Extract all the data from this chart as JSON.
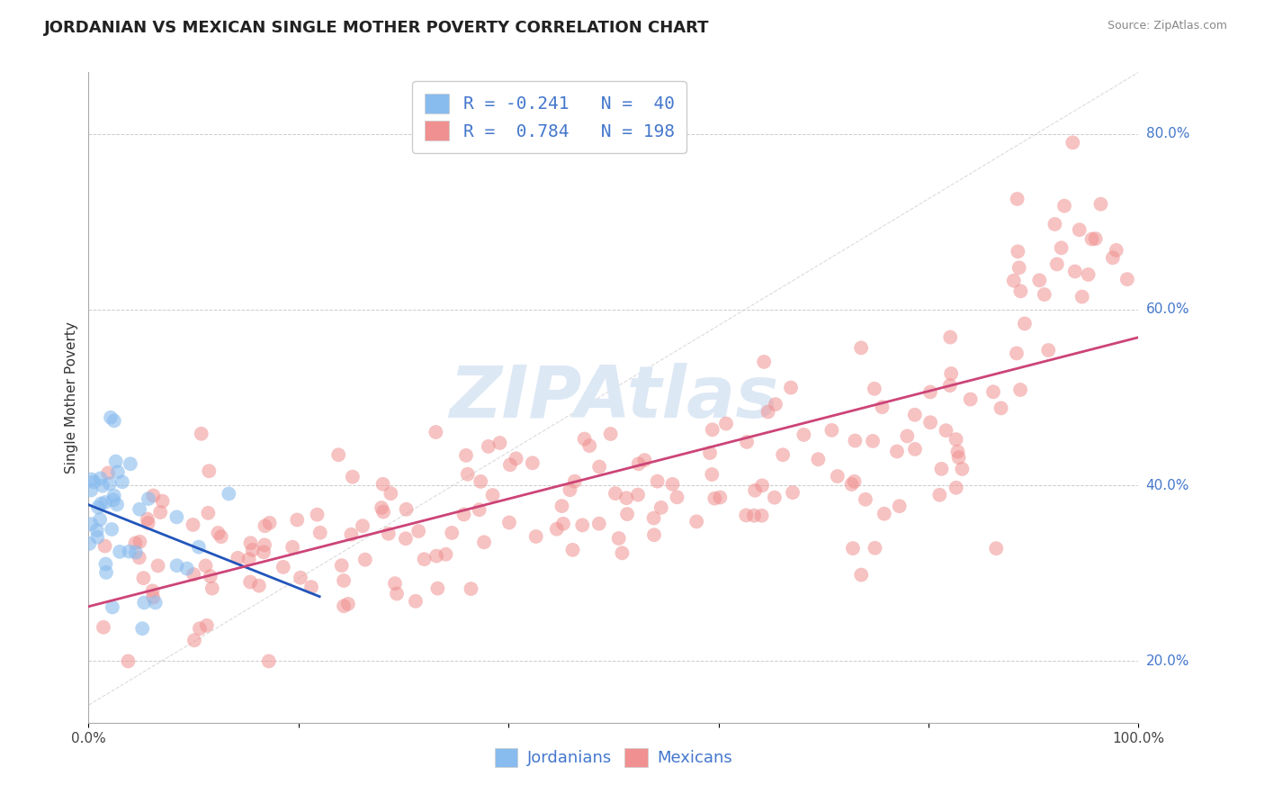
{
  "title": "JORDANIAN VS MEXICAN SINGLE MOTHER POVERTY CORRELATION CHART",
  "source": "Source: ZipAtlas.com",
  "ylabel": "Single Mother Poverty",
  "xlabel": "",
  "xlim": [
    0.0,
    1.0
  ],
  "ylim": [
    0.13,
    0.87
  ],
  "x_tick_positions": [
    0.0,
    0.2,
    0.4,
    0.6,
    0.8,
    1.0
  ],
  "x_tick_labels": [
    "0.0%",
    "",
    "",
    "",
    "",
    "100.0%"
  ],
  "y_tick_positions": [
    0.2,
    0.4,
    0.6,
    0.8
  ],
  "y_tick_labels": [
    "20.0%",
    "40.0%",
    "60.0%",
    "80.0%"
  ],
  "jordanian_color": "#88bbee",
  "mexican_color": "#f09090",
  "jordanian_line_color": "#2255bb",
  "mexican_line_color": "#cc4477",
  "legend_jordanian_label": "Jordanians",
  "legend_mexican_label": "Mexicans",
  "R_jordanian": -0.241,
  "N_jordanian": 40,
  "R_mexican": 0.784,
  "N_mexican": 198,
  "background_color": "#ffffff",
  "grid_color": "#cccccc",
  "title_fontsize": 13,
  "axis_label_fontsize": 11,
  "tick_fontsize": 11,
  "legend_fontsize": 13,
  "watermark": "ZIPAtlas",
  "watermark_color": "#dde8f5",
  "source_color": "#888888",
  "tick_color": "#4477cc",
  "axis_color": "#aaaaaa"
}
